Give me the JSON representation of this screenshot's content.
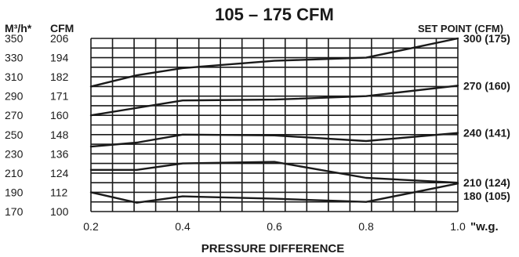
{
  "chart_data": {
    "type": "line",
    "title": "105 – 175 CFM",
    "xlabel": "PRESSURE DIFFERENCE",
    "x_unit": "\"w.g.",
    "left_axis_m3h_label": "M³/h*",
    "left_axis_cfm_label": "CFM",
    "right_axis_label": "SET POINT (CFM)",
    "xlim": [
      0.2,
      1.0
    ],
    "ylim_cfm": [
      100,
      212
    ],
    "x_ticks": [
      "0.2",
      "0.4",
      "0.6",
      "0.8",
      "1.0"
    ],
    "y_ticks_m3h": [
      "350",
      "330",
      "310",
      "290",
      "270",
      "250",
      "230",
      "210",
      "190",
      "170"
    ],
    "y_ticks_cfm": [
      "206",
      "194",
      "182",
      "171",
      "160",
      "148",
      "136",
      "124",
      "112",
      "100"
    ],
    "y_tick_values_cfm": [
      206,
      194,
      182,
      171,
      160,
      148,
      136,
      124,
      112,
      100
    ],
    "grid": true,
    "series": [
      {
        "name": "300 (175)",
        "x": [
          0.2,
          0.3,
          0.4,
          0.6,
          0.8,
          1.0
        ],
        "y": [
          176.5,
          183,
          187.5,
          192,
          194,
          206
        ]
      },
      {
        "name": "270 (160)",
        "x": [
          0.2,
          0.4,
          0.6,
          0.8,
          1.0
        ],
        "y": [
          160,
          168.5,
          169,
          171,
          177
        ]
      },
      {
        "name": "240 (141)",
        "x": [
          0.2,
          0.3,
          0.4,
          0.6,
          0.8,
          1.0
        ],
        "y": [
          140.5,
          143,
          148,
          147.5,
          144,
          149
        ]
      },
      {
        "name": "210 (124)",
        "x": [
          0.2,
          0.3,
          0.4,
          0.6,
          0.8,
          1.0
        ],
        "y": [
          126,
          126,
          130,
          131,
          121,
          118
        ]
      },
      {
        "name": "180 (105)",
        "x": [
          0.2,
          0.3,
          0.4,
          0.6,
          0.8,
          1.0
        ],
        "y": [
          112,
          105.5,
          109.5,
          108,
          106,
          117.5
        ]
      }
    ]
  }
}
